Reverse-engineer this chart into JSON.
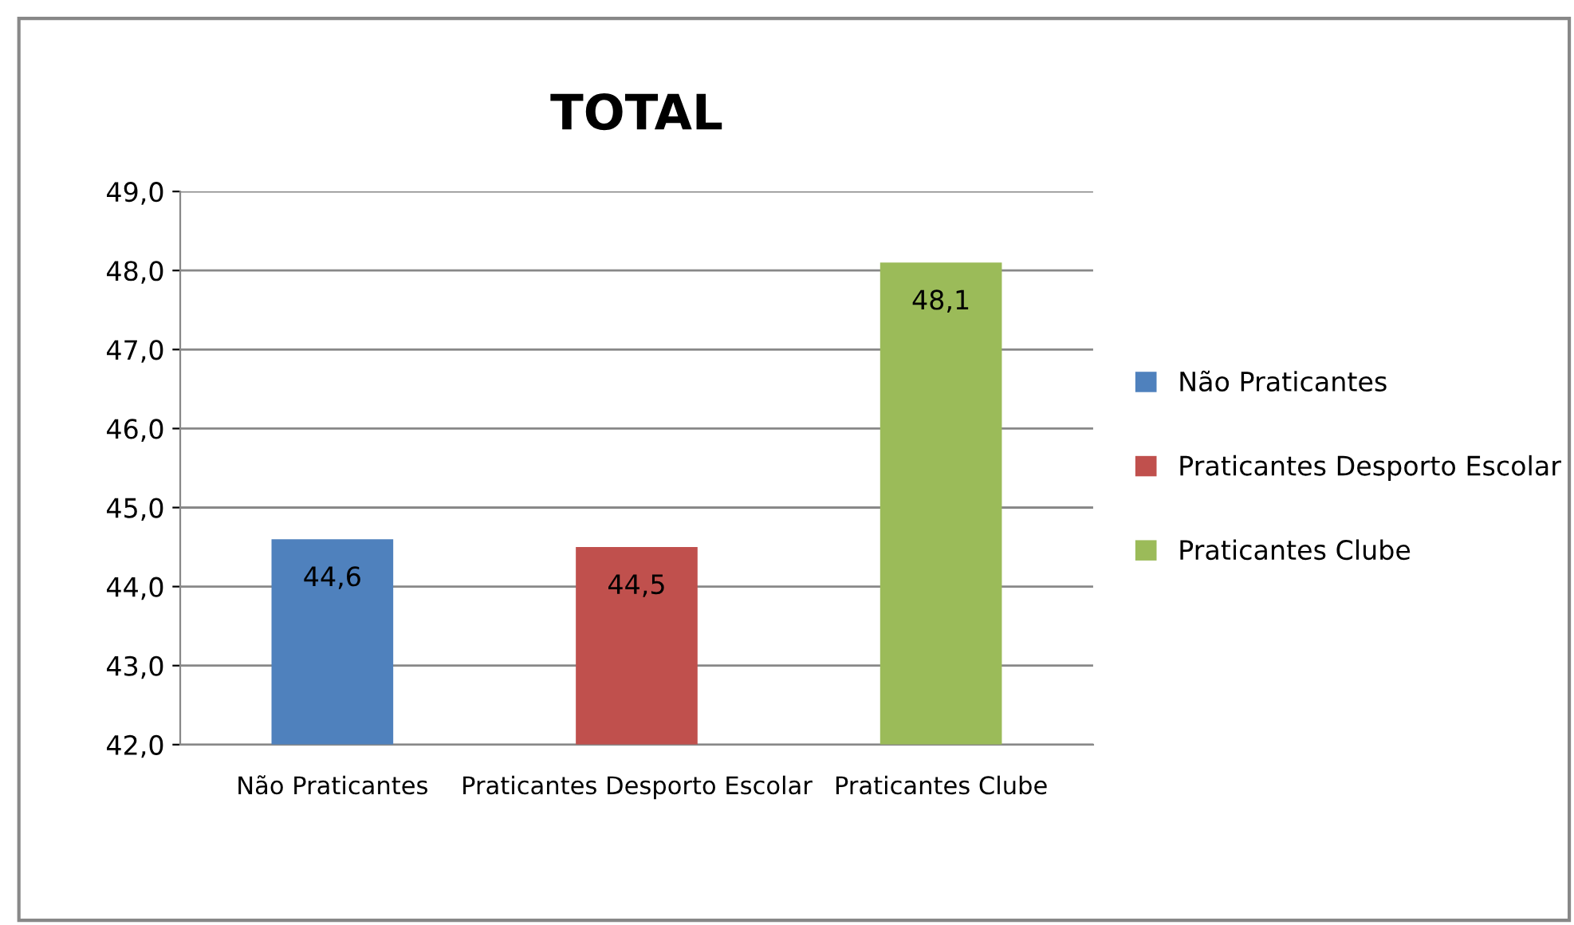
{
  "chart_data": {
    "type": "bar",
    "title": "TOTAL",
    "categories": [
      "Não Praticantes",
      "Praticantes Desporto Escolar",
      "Praticantes Clube"
    ],
    "series": [
      {
        "name": "Não Praticantes",
        "color": "#4f81bd",
        "values": [
          44.6,
          null,
          null
        ],
        "value_labels": [
          "44,6",
          null,
          null
        ]
      },
      {
        "name": "Praticantes Desporto Escolar",
        "color": "#c0504d",
        "values": [
          null,
          44.5,
          null
        ],
        "value_labels": [
          null,
          "44,5",
          null
        ]
      },
      {
        "name": "Praticantes Clube",
        "color": "#9bbb59",
        "values": [
          null,
          null,
          48.1
        ],
        "value_labels": [
          null,
          null,
          "48,1"
        ]
      }
    ],
    "ylim": [
      42,
      49
    ],
    "yticks": [
      {
        "value": 42,
        "label": "42,0"
      },
      {
        "value": 43,
        "label": "43,0"
      },
      {
        "value": 44,
        "label": "44,0"
      },
      {
        "value": 45,
        "label": "45,0"
      },
      {
        "value": 46,
        "label": "46,0"
      },
      {
        "value": 47,
        "label": "47,0"
      },
      {
        "value": 48,
        "label": "48,0"
      },
      {
        "value": 49,
        "label": "49,0"
      }
    ],
    "grid": "y",
    "legend": "right"
  }
}
